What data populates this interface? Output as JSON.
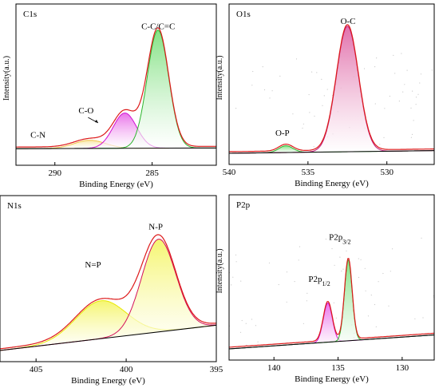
{
  "chart_data": [
    {
      "type": "line",
      "title": "C1s",
      "xlabel": "Binding Energy (eV)",
      "ylabel": "Intensity(a.u.)",
      "xlim": [
        292,
        281.7
      ],
      "x_ticks": [
        290,
        285
      ],
      "peaks": [
        {
          "name": "C-N",
          "center": 288.2,
          "height": 0.06,
          "sigma": 0.8,
          "color": "#f2c24a",
          "fill": "#f8e6a2"
        },
        {
          "name": "C-O",
          "center": 286.4,
          "height": 0.26,
          "sigma": 0.6,
          "color": "#d10fd1",
          "fill": "#e86be8"
        },
        {
          "name": "C-C/C=C",
          "center": 284.7,
          "height": 0.87,
          "sigma": 0.55,
          "color": "#2db52d",
          "fill": "#7ee07e"
        }
      ],
      "labels": [
        "C-N",
        "C-O",
        "C-C/C=C"
      ],
      "colors": {
        "envelope": "#dd1a1a",
        "baseline": "#000000"
      }
    },
    {
      "type": "line",
      "title": "O1s",
      "xlabel": "Binding Energy (eV)",
      "ylabel": "Intensity(a.u.)",
      "xlim": [
        540,
        527
      ],
      "x_ticks": [
        540,
        535,
        530
      ],
      "peaks": [
        {
          "name": "O-P",
          "center": 536.4,
          "height": 0.05,
          "sigma": 0.45,
          "color": "#2db52d",
          "fill": "#7ee07e"
        },
        {
          "name": "O-C",
          "center": 532.5,
          "height": 0.93,
          "sigma": 0.7,
          "color": "#c0187a",
          "fill": "#e06aa8"
        }
      ],
      "labels": [
        "O-P",
        "O-C"
      ],
      "colors": {
        "envelope": "#dd1a1a",
        "baseline": "#000000"
      }
    },
    {
      "type": "line",
      "title": "N1s",
      "xlabel": "Binding Energy (eV)",
      "ylabel": "Intensity(a.u.)",
      "xlim": [
        407,
        395
      ],
      "x_ticks": [
        405,
        400,
        395
      ],
      "peaks": [
        {
          "name": "N=P",
          "center": 401.4,
          "height": 0.27,
          "sigma": 1.4,
          "color": "#e8e800",
          "fill": "#f5f56a"
        },
        {
          "name": "N-P",
          "center": 398.2,
          "height": 0.66,
          "sigma": 0.95,
          "color": "#d4105a",
          "fill": "#e8487f"
        }
      ],
      "labels": [
        "N=P",
        "N-P"
      ],
      "colors": {
        "envelope": "#dd1a1a",
        "baseline": "#000000"
      }
    },
    {
      "type": "line",
      "title": "P2p",
      "xlabel": "Binding Energy (eV)",
      "ylabel": "Intensity(a.u.)",
      "xlim": [
        143.5,
        127.5
      ],
      "x_ticks": [
        140,
        135,
        130
      ],
      "peaks": [
        {
          "name": "P2p1/2",
          "center": 135.8,
          "height": 0.28,
          "sigma": 0.35,
          "color": "#d10fd1",
          "fill": "#e86be8"
        },
        {
          "name": "P2p3/2",
          "center": 134.2,
          "height": 0.58,
          "sigma": 0.3,
          "color": "#2db52d",
          "fill": "#7ee07e"
        }
      ],
      "labels": [
        {
          "base": "P2p",
          "sub": "1/2"
        },
        {
          "base": "P2p",
          "sub": "3/2"
        }
      ],
      "colors": {
        "envelope": "#dd1a1a",
        "baseline": "#000000"
      }
    }
  ]
}
